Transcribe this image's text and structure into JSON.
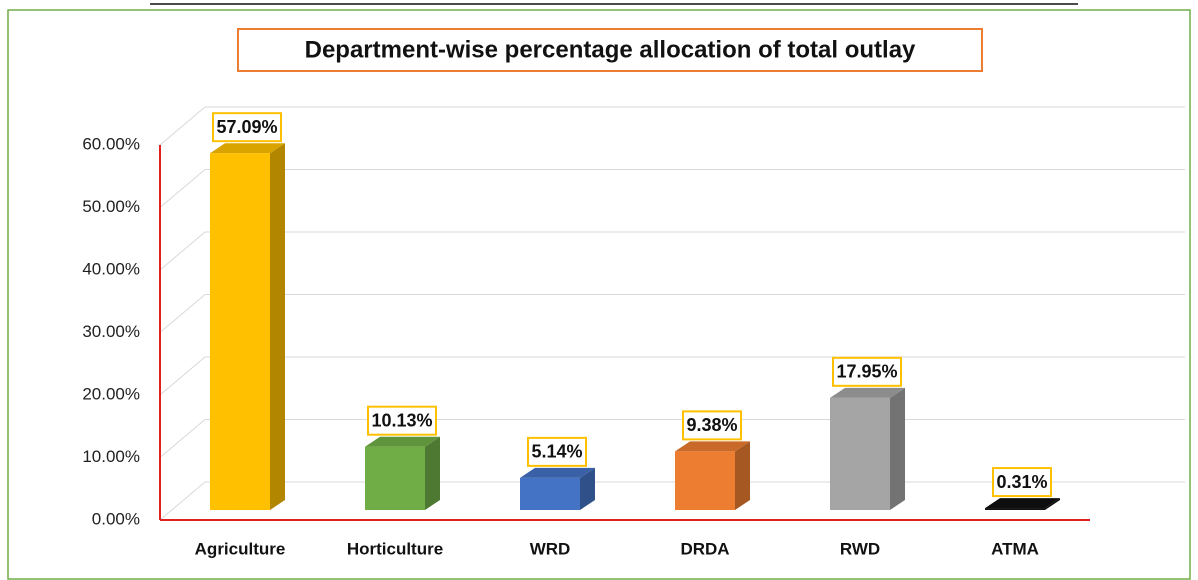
{
  "chart_data": {
    "type": "bar3d",
    "title": "Department-wise percentage allocation of total outlay",
    "categories": [
      "Agriculture",
      "Horticulture",
      "WRD",
      "DRDA",
      "RWD",
      "ATMA"
    ],
    "values": [
      57.09,
      10.13,
      5.14,
      9.38,
      17.95,
      0.31
    ],
    "value_labels": [
      "57.09%",
      "10.13%",
      "5.14%",
      "9.38%",
      "17.95%",
      "0.31%"
    ],
    "colors": [
      "#ffc000",
      "#70ad47",
      "#4472c4",
      "#ed7d31",
      "#a5a5a5",
      "#111111"
    ],
    "ylim": [
      0,
      60
    ],
    "yticks": [
      {
        "value": 0,
        "label": "0.00%"
      },
      {
        "value": 10,
        "label": "10.00%"
      },
      {
        "value": 20,
        "label": "20.00%"
      },
      {
        "value": 30,
        "label": "30.00%"
      },
      {
        "value": 40,
        "label": "40.00%"
      },
      {
        "value": 50,
        "label": "50.00%"
      },
      {
        "value": 60,
        "label": "60.00%"
      }
    ],
    "grid": true
  }
}
